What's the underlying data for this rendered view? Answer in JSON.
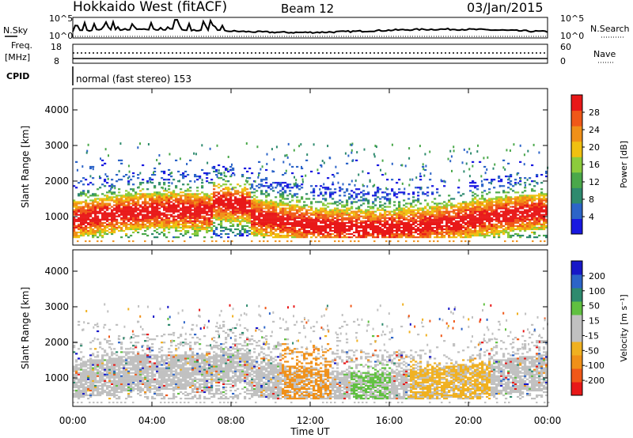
{
  "header": {
    "title": "Hokkaido West (fitACF)",
    "beam": "Beam 12",
    "date": "03/Jan/2015"
  },
  "side_labels": {
    "nsky": "N.Sky",
    "nsearch": "N.Search",
    "freq": "Freq.",
    "freq_unit": "[MHz]",
    "nave": "Nave",
    "cpid": "CPID"
  },
  "noise_ticks": {
    "top": "10^5",
    "bottom": "10^0"
  },
  "freq_ticks": {
    "top": "18",
    "bottom": "8"
  },
  "nave_ticks": {
    "top": "60",
    "bottom": "0"
  },
  "mode_text": "normal (fast stereo) 153",
  "colors": {
    "power": [
      "#1818e0",
      "#2c64c8",
      "#2e8a6e",
      "#4aa84a",
      "#8ccc3c",
      "#f0c010",
      "#f09018",
      "#f05818",
      "#e81818"
    ],
    "velocity": [
      "#e81818",
      "#f05818",
      "#f09018",
      "#f0b020",
      "#c0c0c0",
      "#c0c0c0",
      "#60c040",
      "#2e8a6e",
      "#2c64c8",
      "#1818c8"
    ]
  },
  "chart_data": [
    {
      "type": "heatmap",
      "name": "power-panel",
      "xlabel": "Time UT",
      "ylabel": "Slant Range [km]",
      "x_ticks": [
        "00:00",
        "04:00",
        "08:00",
        "12:00",
        "16:00",
        "20:00",
        "00:00"
      ],
      "xlim": [
        0,
        24
      ],
      "ylim": [
        200,
        4600
      ],
      "y_ticks": [
        1000,
        2000,
        3000,
        4000
      ],
      "colorbar": {
        "label": "Power [dB]",
        "ticks": [
          "4",
          "8",
          "12",
          "16",
          "20",
          "24",
          "28"
        ]
      }
    },
    {
      "type": "heatmap",
      "name": "velocity-panel",
      "xlabel": "Time UT",
      "ylabel": "Slant Range [km]",
      "x_ticks": [
        "00:00",
        "04:00",
        "08:00",
        "12:00",
        "16:00",
        "20:00",
        "00:00"
      ],
      "xlim": [
        0,
        24
      ],
      "ylim": [
        200,
        4600
      ],
      "y_ticks": [
        1000,
        2000,
        3000,
        4000
      ],
      "colorbar": {
        "label": "Velocity [m s⁻¹]",
        "ticks": [
          "-200",
          "-100",
          "-50",
          "-15",
          "15",
          "50",
          "100",
          "200"
        ]
      }
    }
  ]
}
